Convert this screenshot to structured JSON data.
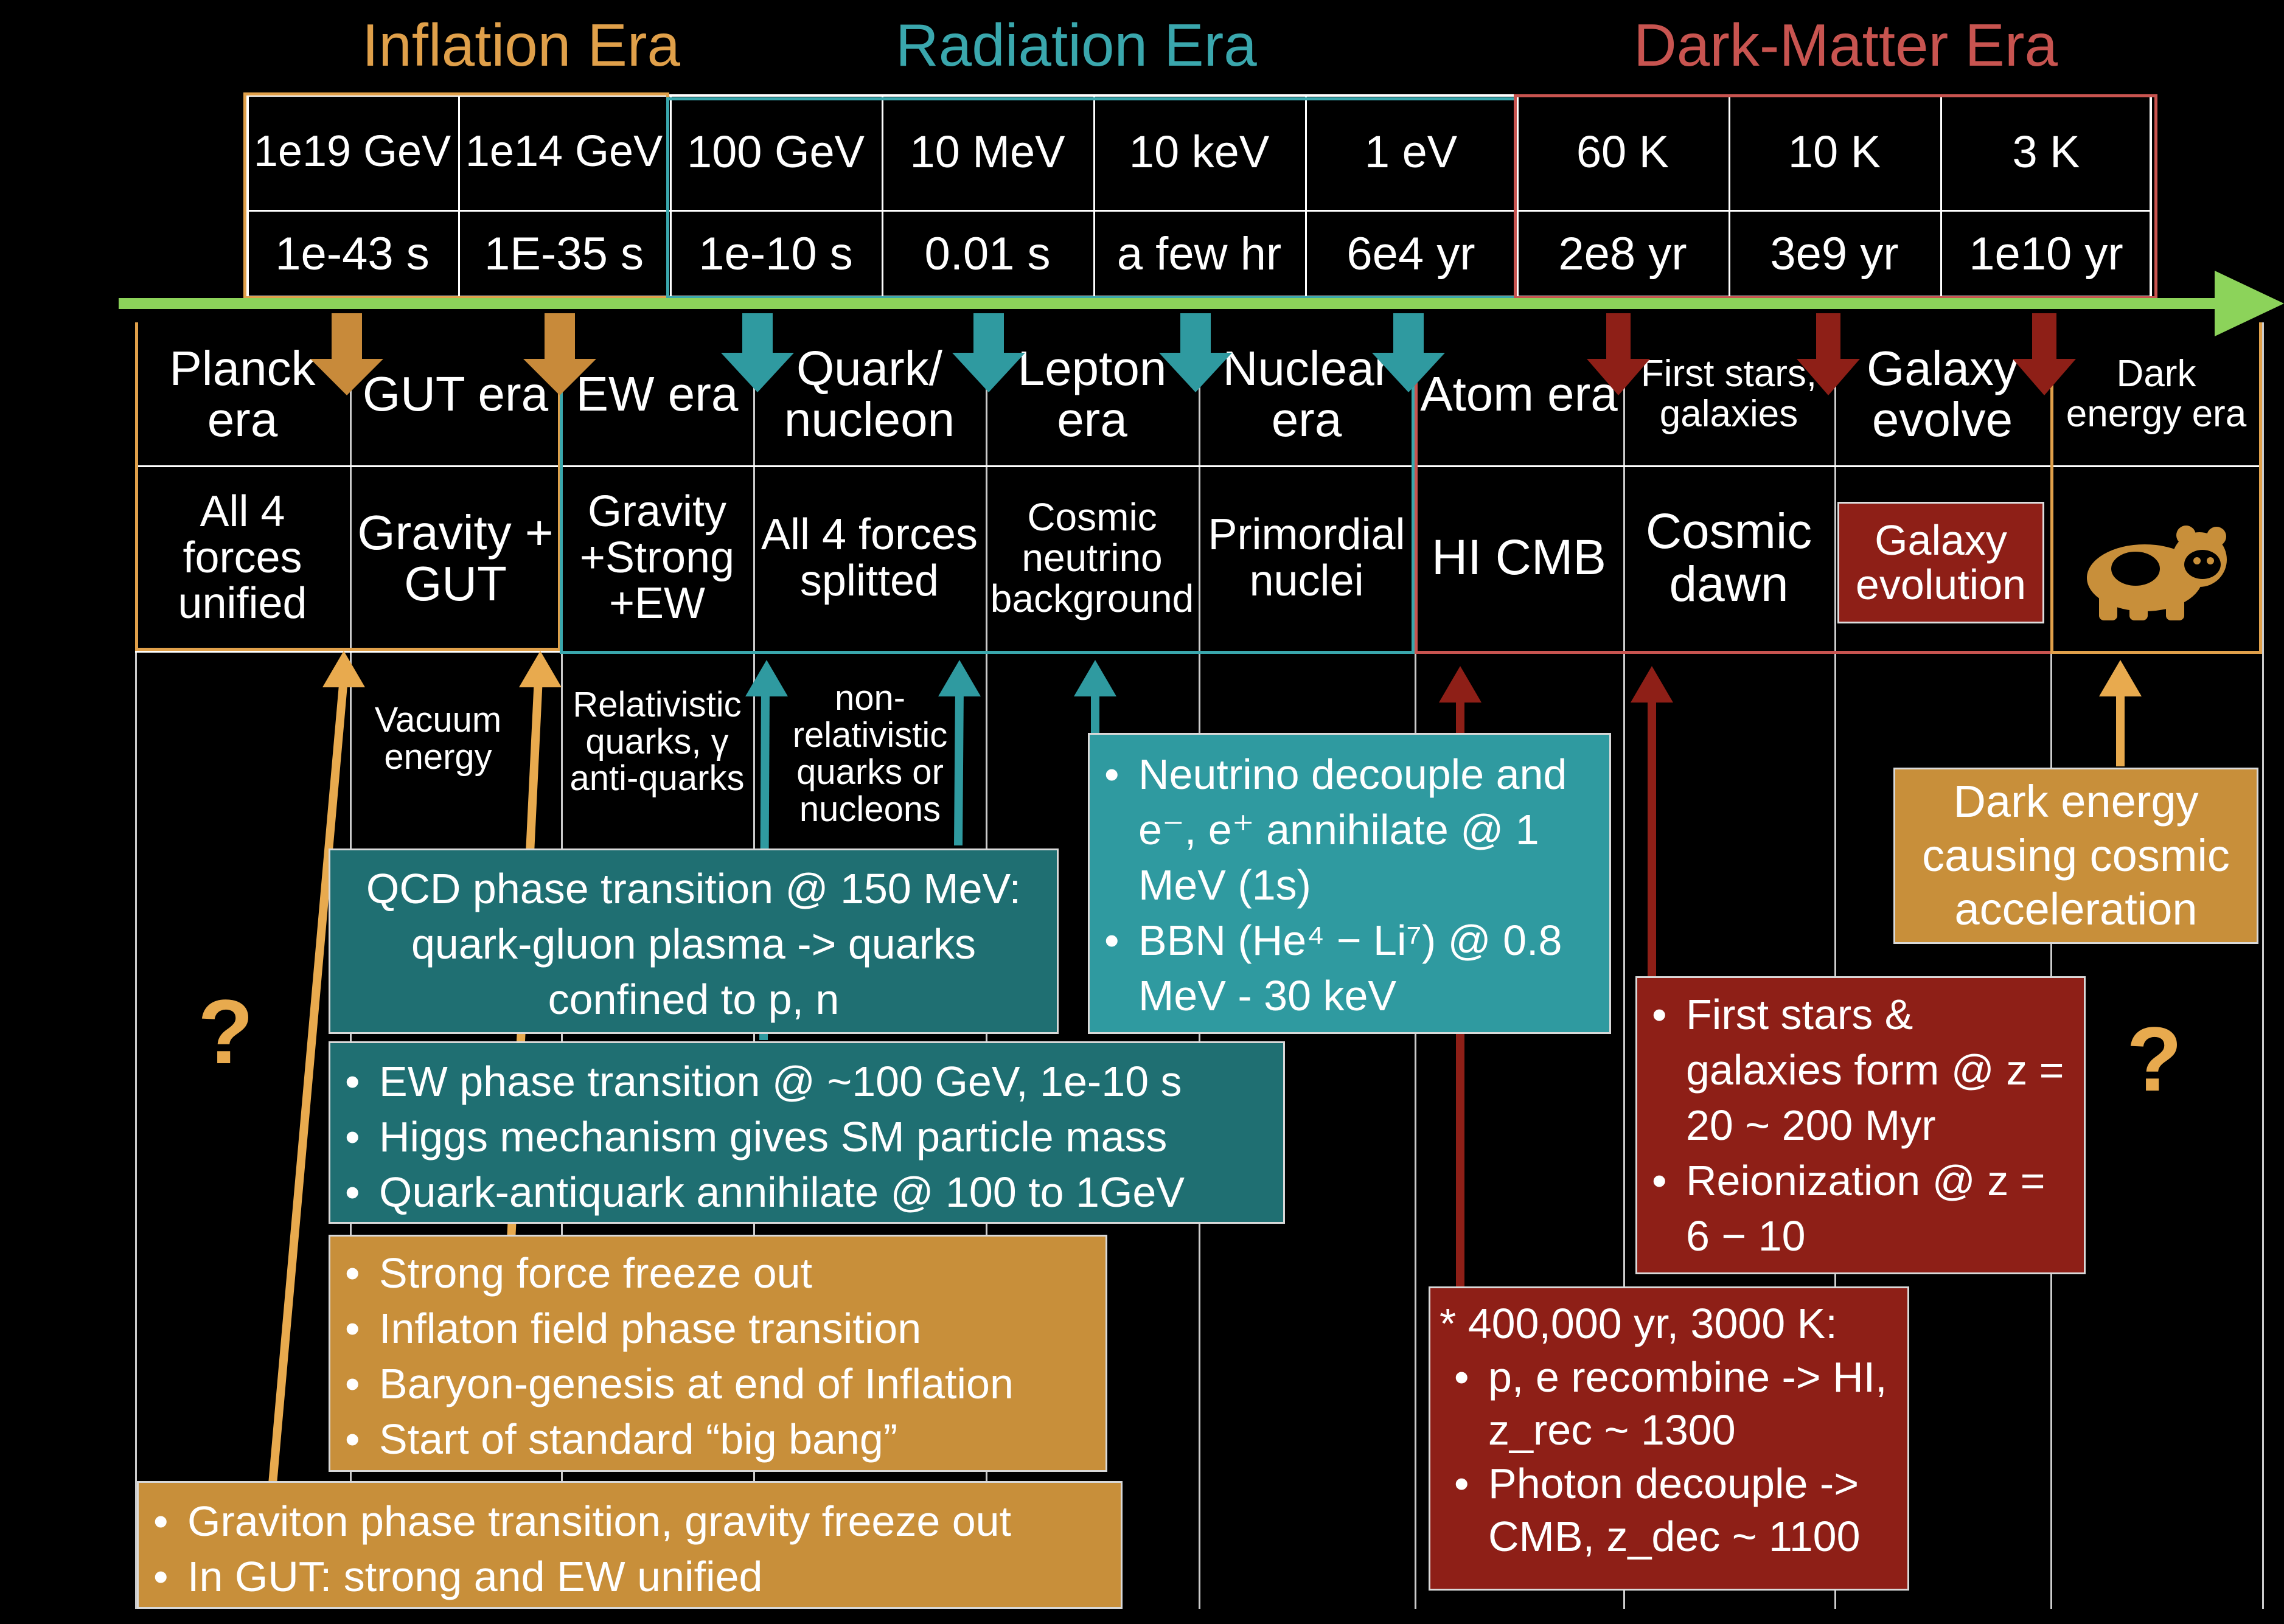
{
  "eras": {
    "inflation": {
      "label": "Inflation Era",
      "color": "#e0a04a"
    },
    "radiation": {
      "label": "Radiation Era",
      "color": "#3aa7ad"
    },
    "dark_matter": {
      "label": "Dark-Matter Era",
      "color": "#c85450"
    }
  },
  "energies": [
    "1e19 GeV",
    "1e14 GeV",
    "100 GeV",
    "10 MeV",
    "10 keV",
    "1 eV",
    "60 K",
    "10 K",
    "3 K"
  ],
  "times": [
    "1e-43 s",
    "1E-35 s",
    "1e-10 s",
    "0.01 s",
    "a few hr",
    "6e4 yr",
    "2e8 yr",
    "3e9 yr",
    "1e10 yr"
  ],
  "epochs": [
    {
      "name": "Planck era",
      "desc": "All 4 forces unified"
    },
    {
      "name": "GUT era",
      "desc": "Gravity + GUT"
    },
    {
      "name": "EW era",
      "desc": "Gravity +Strong +EW"
    },
    {
      "name": "Quark/ nucleon",
      "desc": "All 4 forces splitted"
    },
    {
      "name": "Lepton era",
      "desc": "Cosmic neutrino background"
    },
    {
      "name": "Nuclear era",
      "desc": "Primordial nuclei"
    },
    {
      "name": "Atom era",
      "desc": "HI CMB"
    },
    {
      "name": "First stars, galaxies",
      "desc": "Cosmic dawn"
    },
    {
      "name": "Galaxy evolve",
      "desc": "Galaxy evolution"
    },
    {
      "name": "Dark energy era",
      "desc": ""
    }
  ],
  "notes": {
    "vacuum": "Vacuum energy",
    "relativistic": "Relativistic quarks, γ anti-quarks",
    "nonrel": "non-relativistic quarks or nucleons",
    "question": "?"
  },
  "boxes": {
    "qcd": [
      "QCD phase transition @ 150 MeV:",
      "quark-gluon plasma -> quarks",
      "confined to p, n"
    ],
    "ew": [
      "EW phase transition @ ~100 GeV, 1e-10 s",
      "Higgs mechanism gives SM particle mass",
      "Quark-antiquark annihilate @ 100 to 1GeV"
    ],
    "inflation": [
      "Strong force freeze out",
      "Inflaton field phase transition",
      "Baryon-genesis at end of Inflation",
      "Start of standard “big bang”"
    ],
    "graviton": [
      "Graviton phase transition, gravity freeze out",
      "In GUT: strong and EW unified"
    ],
    "neutrino": [
      "Neutrino decouple and e⁻, e⁺ annihilate @ 1 MeV (1s)",
      "BBN (He⁴ − Li⁷) @ 0.8 MeV - 30 keV"
    ],
    "stars": [
      "First stars & galaxies form @ z = 20 ~ 200 Myr",
      "Reionization @ z = 6 − 10"
    ],
    "recomb": [
      "* 400,000 yr, 3000 K:",
      "p, e recombine -> HI, z_rec ~ 1300",
      "Photon decouple -> CMB, z_dec ~ 1100"
    ],
    "dark_energy": "Dark energy causing cosmic acceleration"
  },
  "colors": {
    "orange": "#c88f3a",
    "orange_light": "#e8aa4e",
    "teal": "#1f6f72",
    "teal_light": "#2f9aa0",
    "red": "#8e1f17",
    "red_light": "#a4281f",
    "green": "#8cd35a"
  },
  "icons": {
    "dark_energy": "panda-icon"
  }
}
